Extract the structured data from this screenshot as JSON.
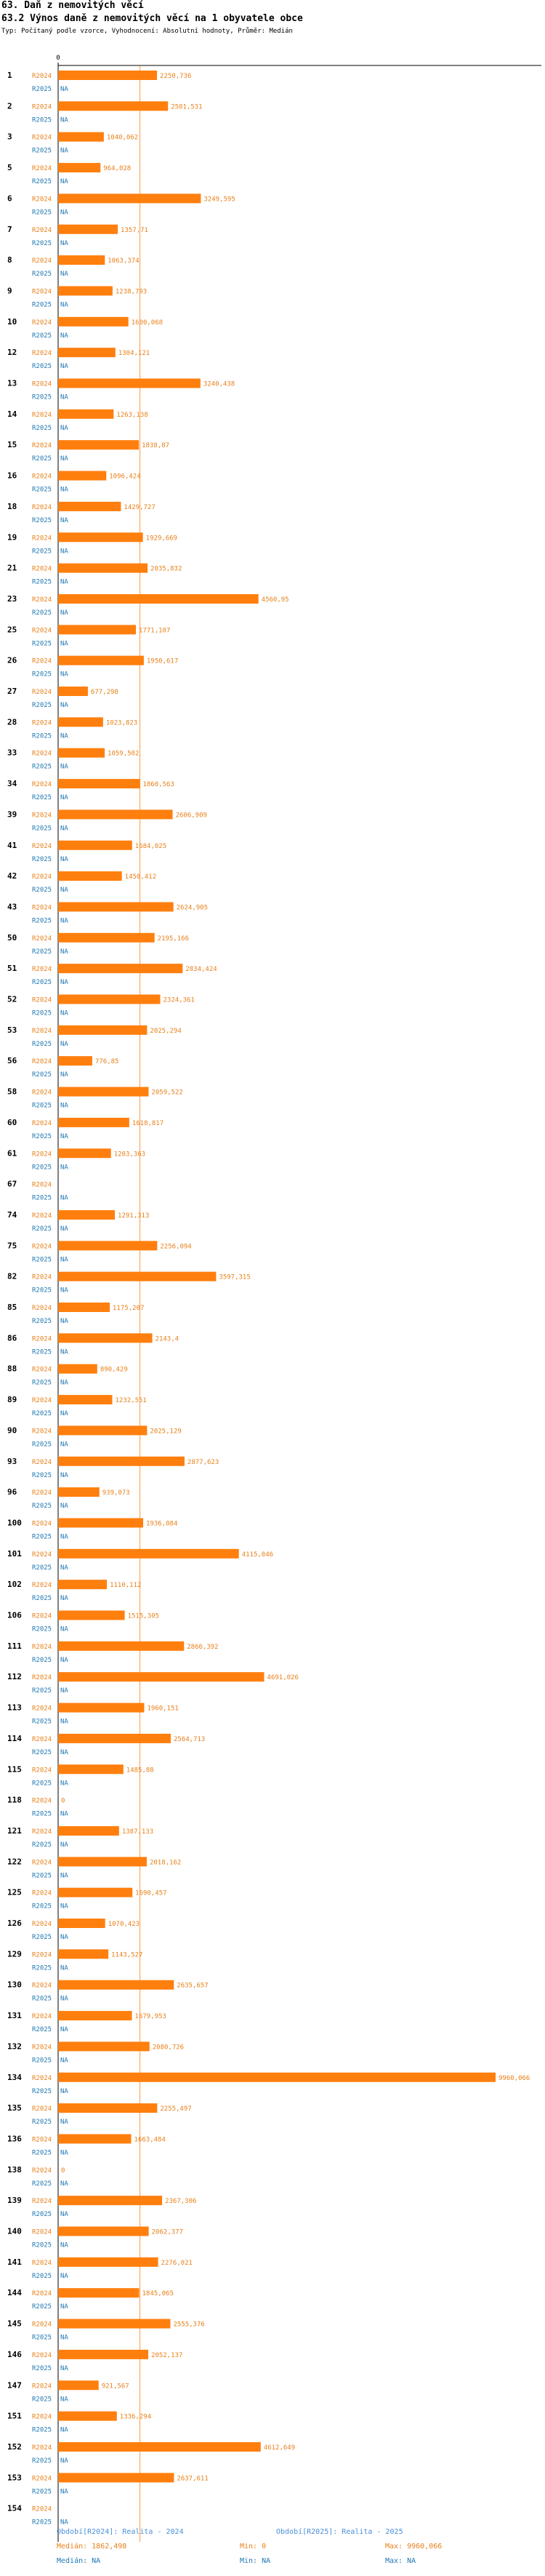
{
  "header": {
    "section_title": "63. Daň z nemovitých věcí",
    "chart_title": "63.2 Výnos daně z nemovitých věcí na 1 obyvatele obce",
    "subtitle": "Typ: Počítaný podle vzorce, Vyhodnocení: Absolutní hodnoty, Průměr: Medián"
  },
  "colors": {
    "bar": "#ff7f0e",
    "series2024": "#e8801a",
    "series2025": "#1f77b4",
    "axis": "#000000",
    "median": "#ff7f0e"
  },
  "chart_data": {
    "type": "bar",
    "orientation": "horizontal",
    "axis_tick_label": "0",
    "xlim": [
      0,
      9960.066
    ],
    "series": [
      {
        "name": "R2024",
        "label": "R2024"
      },
      {
        "name": "R2025",
        "label": "R2025"
      }
    ],
    "missing_label": "NA",
    "median_2024": 1862.498,
    "rows": [
      {
        "id": "1",
        "v2024": 2250.736,
        "label2024": "2250,736",
        "label2025": "NA"
      },
      {
        "id": "2",
        "v2024": 2501.531,
        "label2024": "2501,531",
        "label2025": "NA"
      },
      {
        "id": "3",
        "v2024": 1040.062,
        "label2024": "1040,062",
        "label2025": "NA"
      },
      {
        "id": "5",
        "v2024": 964.028,
        "label2024": "964,028",
        "label2025": "NA"
      },
      {
        "id": "6",
        "v2024": 3249.595,
        "label2024": "3249,595",
        "label2025": "NA"
      },
      {
        "id": "7",
        "v2024": 1357.71,
        "label2024": "1357,71",
        "label2025": "NA"
      },
      {
        "id": "8",
        "v2024": 1063.374,
        "label2024": "1063,374",
        "label2025": "NA"
      },
      {
        "id": "9",
        "v2024": 1238.793,
        "label2024": "1238,793",
        "label2025": "NA"
      },
      {
        "id": "10",
        "v2024": 1600.068,
        "label2024": "1600,068",
        "label2025": "NA"
      },
      {
        "id": "12",
        "v2024": 1304.121,
        "label2024": "1304,121",
        "label2025": "NA"
      },
      {
        "id": "13",
        "v2024": 3240.438,
        "label2024": "3240,438",
        "label2025": "NA"
      },
      {
        "id": "14",
        "v2024": 1263.138,
        "label2024": "1263,138",
        "label2025": "NA"
      },
      {
        "id": "15",
        "v2024": 1838.87,
        "label2024": "1838,87",
        "label2025": "NA"
      },
      {
        "id": "16",
        "v2024": 1096.424,
        "label2024": "1096,424",
        "label2025": "NA"
      },
      {
        "id": "18",
        "v2024": 1429.727,
        "label2024": "1429,727",
        "label2025": "NA"
      },
      {
        "id": "19",
        "v2024": 1929.669,
        "label2024": "1929,669",
        "label2025": "NA"
      },
      {
        "id": "21",
        "v2024": 2035.832,
        "label2024": "2035,832",
        "label2025": "NA"
      },
      {
        "id": "23",
        "v2024": 4560.95,
        "label2024": "4560,95",
        "label2025": "NA"
      },
      {
        "id": "25",
        "v2024": 1771.107,
        "label2024": "1771,107",
        "label2025": "NA"
      },
      {
        "id": "26",
        "v2024": 1950.617,
        "label2024": "1950,617",
        "label2025": "NA"
      },
      {
        "id": "27",
        "v2024": 677.298,
        "label2024": "677,298",
        "label2025": "NA"
      },
      {
        "id": "28",
        "v2024": 1023.823,
        "label2024": "1023,823",
        "label2025": "NA"
      },
      {
        "id": "33",
        "v2024": 1059.502,
        "label2024": "1059,502",
        "label2025": "NA"
      },
      {
        "id": "34",
        "v2024": 1860.563,
        "label2024": "1860,563",
        "label2025": "NA"
      },
      {
        "id": "39",
        "v2024": 2606.909,
        "label2024": "2606,909",
        "label2025": "NA"
      },
      {
        "id": "41",
        "v2024": 1684.025,
        "label2024": "1684,025",
        "label2025": "NA"
      },
      {
        "id": "42",
        "v2024": 1450.412,
        "label2024": "1450,412",
        "label2025": "NA"
      },
      {
        "id": "43",
        "v2024": 2624.905,
        "label2024": "2624,905",
        "label2025": "NA"
      },
      {
        "id": "50",
        "v2024": 2195.166,
        "label2024": "2195,166",
        "label2025": "NA"
      },
      {
        "id": "51",
        "v2024": 2834.424,
        "label2024": "2834,424",
        "label2025": "NA"
      },
      {
        "id": "52",
        "v2024": 2324.361,
        "label2024": "2324,361",
        "label2025": "NA"
      },
      {
        "id": "53",
        "v2024": 2025.294,
        "label2024": "2025,294",
        "label2025": "NA"
      },
      {
        "id": "56",
        "v2024": 776.85,
        "label2024": "776,85",
        "label2025": "NA"
      },
      {
        "id": "58",
        "v2024": 2059.522,
        "label2024": "2059,522",
        "label2025": "NA"
      },
      {
        "id": "60",
        "v2024": 1618.817,
        "label2024": "1618,817",
        "label2025": "NA"
      },
      {
        "id": "61",
        "v2024": 1203.363,
        "label2024": "1203,363",
        "label2025": "NA"
      },
      {
        "id": "67",
        "v2024": 0,
        "label2024": "",
        "label2025": "NA"
      },
      {
        "id": "74",
        "v2024": 1291.313,
        "label2024": "1291,313",
        "label2025": "NA"
      },
      {
        "id": "75",
        "v2024": 2256.094,
        "label2024": "2256,094",
        "label2025": "NA"
      },
      {
        "id": "82",
        "v2024": 3597.315,
        "label2024": "3597,315",
        "label2025": "NA"
      },
      {
        "id": "85",
        "v2024": 1175.207,
        "label2024": "1175,207",
        "label2025": "NA"
      },
      {
        "id": "86",
        "v2024": 2143.4,
        "label2024": "2143,4",
        "label2025": "NA"
      },
      {
        "id": "88",
        "v2024": 890.429,
        "label2024": "890,429",
        "label2025": "NA"
      },
      {
        "id": "89",
        "v2024": 1232.551,
        "label2024": "1232,551",
        "label2025": "NA"
      },
      {
        "id": "90",
        "v2024": 2025.129,
        "label2024": "2025,129",
        "label2025": "NA"
      },
      {
        "id": "93",
        "v2024": 2877.623,
        "label2024": "2877,623",
        "label2025": "NA"
      },
      {
        "id": "96",
        "v2024": 939.073,
        "label2024": "939,073",
        "label2025": "NA"
      },
      {
        "id": "100",
        "v2024": 1936.084,
        "label2024": "1936,084",
        "label2025": "NA"
      },
      {
        "id": "101",
        "v2024": 4115.046,
        "label2024": "4115,046",
        "label2025": "NA"
      },
      {
        "id": "102",
        "v2024": 1110.112,
        "label2024": "1110,112",
        "label2025": "NA"
      },
      {
        "id": "106",
        "v2024": 1515.305,
        "label2024": "1515,305",
        "label2025": "NA"
      },
      {
        "id": "111",
        "v2024": 2866.392,
        "label2024": "2866,392",
        "label2025": "NA"
      },
      {
        "id": "112",
        "v2024": 4691.026,
        "label2024": "4691,026",
        "label2025": "NA"
      },
      {
        "id": "113",
        "v2024": 1960.151,
        "label2024": "1960,151",
        "label2025": "NA"
      },
      {
        "id": "114",
        "v2024": 2564.713,
        "label2024": "2564,713",
        "label2025": "NA"
      },
      {
        "id": "115",
        "v2024": 1485.88,
        "label2024": "1485,88",
        "label2025": "NA"
      },
      {
        "id": "118",
        "v2024": 0,
        "label2024": "0",
        "label2025": "NA"
      },
      {
        "id": "121",
        "v2024": 1387.133,
        "label2024": "1387,133",
        "label2025": "NA"
      },
      {
        "id": "122",
        "v2024": 2018.162,
        "label2024": "2018,162",
        "label2025": "NA"
      },
      {
        "id": "125",
        "v2024": 1690.457,
        "label2024": "1690,457",
        "label2025": "NA"
      },
      {
        "id": "126",
        "v2024": 1070.423,
        "label2024": "1070,423",
        "label2025": "NA"
      },
      {
        "id": "129",
        "v2024": 1143.527,
        "label2024": "1143,527",
        "label2025": "NA"
      },
      {
        "id": "130",
        "v2024": 2635.657,
        "label2024": "2635,657",
        "label2025": "NA"
      },
      {
        "id": "131",
        "v2024": 1679.953,
        "label2024": "1679,953",
        "label2025": "NA"
      },
      {
        "id": "132",
        "v2024": 2080.726,
        "label2024": "2080,726",
        "label2025": "NA"
      },
      {
        "id": "134",
        "v2024": 9960.066,
        "label2024": "9960,066",
        "label2025": "NA"
      },
      {
        "id": "135",
        "v2024": 2255.497,
        "label2024": "2255,497",
        "label2025": "NA"
      },
      {
        "id": "136",
        "v2024": 1663.484,
        "label2024": "1663,484",
        "label2025": "NA"
      },
      {
        "id": "138",
        "v2024": 0,
        "label2024": "0",
        "label2025": "NA"
      },
      {
        "id": "139",
        "v2024": 2367.306,
        "label2024": "2367,306",
        "label2025": "NA"
      },
      {
        "id": "140",
        "v2024": 2062.377,
        "label2024": "2062,377",
        "label2025": "NA"
      },
      {
        "id": "141",
        "v2024": 2276.021,
        "label2024": "2276,021",
        "label2025": "NA"
      },
      {
        "id": "144",
        "v2024": 1845.065,
        "label2024": "1845,065",
        "label2025": "NA"
      },
      {
        "id": "145",
        "v2024": 2555.376,
        "label2024": "2555,376",
        "label2025": "NA"
      },
      {
        "id": "146",
        "v2024": 2052.137,
        "label2024": "2052,137",
        "label2025": "NA"
      },
      {
        "id": "147",
        "v2024": 921.567,
        "label2024": "921,567",
        "label2025": "NA"
      },
      {
        "id": "151",
        "v2024": 1336.294,
        "label2024": "1336,294",
        "label2025": "NA"
      },
      {
        "id": "152",
        "v2024": 4612.649,
        "label2024": "4612,649",
        "label2025": "NA"
      },
      {
        "id": "153",
        "v2024": 2637.611,
        "label2024": "2637,611",
        "label2025": "NA"
      },
      {
        "id": "154",
        "v2024": 0,
        "label2024": "",
        "label2025": "NA"
      }
    ]
  },
  "footer": {
    "period2024": "Období[R2024]: Realita - 2024",
    "period2025": "Období[R2025]: Realita - 2025",
    "median2024": "Medián: 1862,498",
    "min2024": "Min: 0",
    "max2024": "Max: 9960,066",
    "median2025": "Medián: NA",
    "min2025": "Min: NA",
    "max2025": "Max: NA"
  }
}
